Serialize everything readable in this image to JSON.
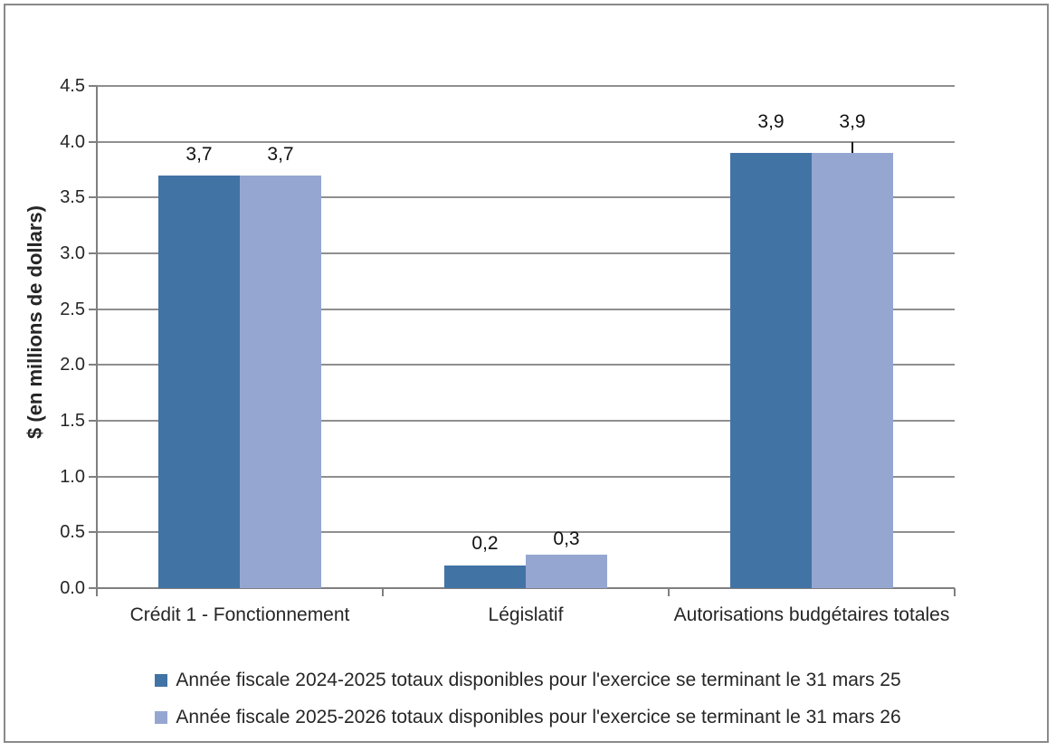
{
  "chart_data": {
    "type": "bar",
    "title": "",
    "ylabel": "$ (en millions de dollars)",
    "xlabel": "",
    "ylim": [
      0,
      4.5
    ],
    "ytick_step": 0.5,
    "ytick_labels": [
      "0.0",
      "0.5",
      "1.0",
      "1.5",
      "2.0",
      "2.5",
      "3.0",
      "3.5",
      "4.0",
      "4.5"
    ],
    "grid": true,
    "legend_position": "bottom",
    "categories": [
      "Crédit 1 - Fonctionnement",
      "Législatif",
      "Autorisations budgétaires totales"
    ],
    "series": [
      {
        "name": "Année fiscale 2024-2025 totaux disponibles pour l'exercice se terminant le 31 mars 25",
        "values": [
          3.7,
          0.2,
          3.9
        ],
        "point_labels": [
          "3,7",
          "0,2",
          "3,9"
        ],
        "color": "#4273A5"
      },
      {
        "name": "Année fiscale 2025-2026 totaux disponibles pour l'exercice se terminant le 31 mars 26",
        "values": [
          3.7,
          0.3,
          3.9
        ],
        "point_labels": [
          "3,7",
          "0,3",
          "3,9"
        ],
        "color": "#95A7D1"
      }
    ],
    "label_gaps": [
      [
        11,
        12,
        22
      ],
      [
        11,
        5,
        22
      ]
    ],
    "leader_line": {
      "series": 1,
      "category": 2,
      "length": 12
    }
  },
  "colors": {
    "series1": "#4273A5",
    "series2": "#95A7D1",
    "gridline": "#8F8F8F",
    "axis": "#7F7F7F",
    "border": "#8A8A8A",
    "text": "#262626"
  }
}
